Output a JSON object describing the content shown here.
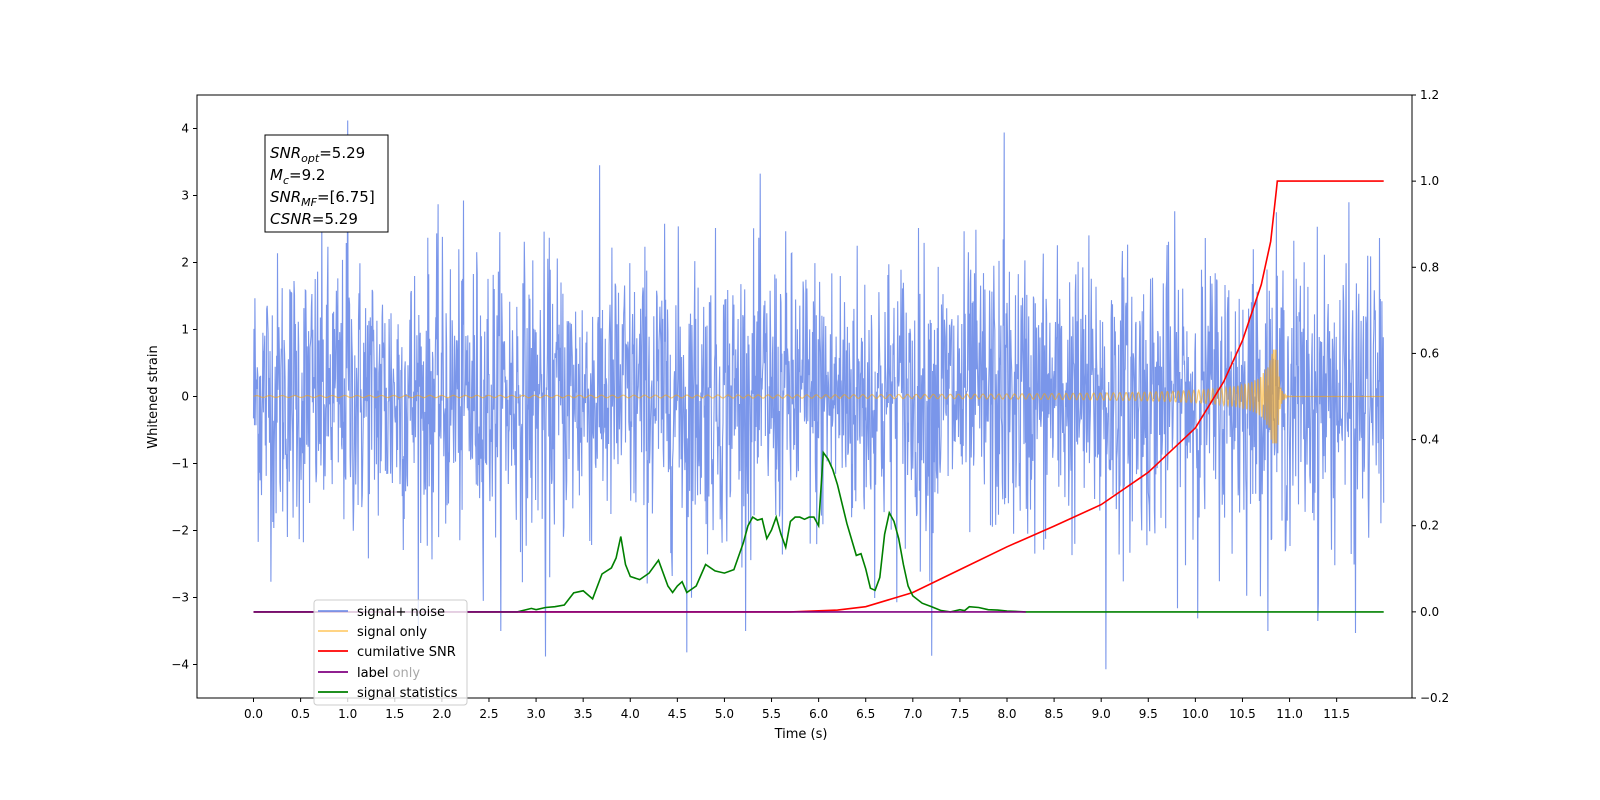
{
  "chart_data": {
    "type": "line",
    "xlabel": "Time (s)",
    "ylabel": "Whitened strain",
    "xlim": [
      -0.6,
      12.3
    ],
    "ylim_left": [
      -4.5,
      4.5
    ],
    "ylim_right": [
      -0.2,
      1.2
    ],
    "x_ticks": [
      0.0,
      0.5,
      1.0,
      1.5,
      2.0,
      2.5,
      3.0,
      3.5,
      4.0,
      4.5,
      5.0,
      5.5,
      6.0,
      6.5,
      7.0,
      7.5,
      8.0,
      8.5,
      9.0,
      9.5,
      10.0,
      10.5,
      11.0,
      11.5
    ],
    "x_tick_labels": [
      "0.0",
      "0.5",
      "1.0",
      "1.5",
      "2.0",
      "2.5",
      "3.0",
      "3.5",
      "4.0",
      "4.5",
      "5.0",
      "5.5",
      "6.0",
      "6.5",
      "7.0",
      "7.5",
      "8.0",
      "8.5",
      "9.0",
      "9.5",
      "10.0",
      "10.5",
      "11.0",
      "11.5"
    ],
    "y_ticks_left": [
      -4,
      -3,
      -2,
      -1,
      0,
      1,
      2,
      3,
      4
    ],
    "y_tick_labels_left": [
      "−4",
      "−3",
      "−2",
      "−1",
      "0",
      "1",
      "2",
      "3",
      "4"
    ],
    "y_ticks_right": [
      -0.2,
      0.0,
      0.2,
      0.4,
      0.6,
      0.8,
      1.0,
      1.2
    ],
    "y_tick_labels_right": [
      "−0.2",
      "0.0",
      "0.2",
      "0.4",
      "0.6",
      "0.8",
      "1.0",
      "1.2"
    ],
    "grid": false,
    "legend_position": "lower-left",
    "annotation": {
      "lines": [
        {
          "base": "SNR",
          "sub": "opt",
          "rest": "=5.29"
        },
        {
          "base": "M",
          "sub": "c",
          "rest": "=9.2"
        },
        {
          "base": "SNR",
          "sub": "MF",
          "rest": "=[6.75]"
        },
        {
          "base": "CSNR",
          "sub": "",
          "rest": "=5.29"
        }
      ]
    },
    "series": [
      {
        "name": "signal+ noise",
        "axis": "left",
        "color": "#4169e1",
        "kind": "noise",
        "x_range": [
          0.0,
          12.0
        ],
        "amplitude_typical": 1.7,
        "extremes": [
          [
            1.0,
            4.12
          ],
          [
            7.97,
            3.94
          ],
          [
            3.1,
            -3.88
          ],
          [
            9.05,
            -4.07
          ],
          [
            7.2,
            -3.87
          ],
          [
            4.6,
            -3.82
          ],
          [
            11.3,
            -3.35
          ],
          [
            11.7,
            -3.53
          ]
        ]
      },
      {
        "name": "signal only",
        "axis": "left",
        "color": "#ffa500",
        "kind": "chirp",
        "x_range": [
          0.0,
          12.0
        ],
        "merger_time": 10.87,
        "peak_amplitude": 0.7
      },
      {
        "name": "cumilative SNR",
        "axis": "right",
        "color": "#ff0000",
        "x": [
          0.0,
          5.7,
          6.2,
          6.5,
          7.0,
          7.5,
          8.0,
          8.5,
          9.0,
          9.5,
          10.0,
          10.3,
          10.5,
          10.7,
          10.8,
          10.86,
          10.87,
          12.0
        ],
        "y": [
          0.0,
          0.0,
          0.004,
          0.012,
          0.045,
          0.098,
          0.151,
          0.199,
          0.249,
          0.324,
          0.427,
          0.534,
          0.63,
          0.76,
          0.86,
          0.98,
          1.0,
          1.0
        ]
      },
      {
        "name": "label",
        "axis": "right",
        "color": "#800080",
        "x": [
          0.0,
          8.2
        ],
        "y": [
          0.0,
          0.0
        ]
      },
      {
        "name": "label only",
        "axis": "right",
        "color": "#800080",
        "x": [],
        "y": []
      },
      {
        "name": "signal statistics",
        "axis": "right",
        "color": "#008000",
        "x": [
          0.0,
          2.8,
          2.95,
          3.0,
          3.1,
          3.2,
          3.3,
          3.4,
          3.5,
          3.6,
          3.7,
          3.8,
          3.85,
          3.9,
          3.95,
          4.0,
          4.1,
          4.2,
          4.3,
          4.4,
          4.45,
          4.5,
          4.55,
          4.6,
          4.7,
          4.8,
          4.9,
          5.0,
          5.1,
          5.2,
          5.25,
          5.3,
          5.35,
          5.4,
          5.45,
          5.5,
          5.55,
          5.6,
          5.65,
          5.7,
          5.75,
          5.8,
          5.85,
          5.9,
          5.95,
          6.0,
          6.05,
          6.1,
          6.15,
          6.2,
          6.3,
          6.4,
          6.45,
          6.5,
          6.55,
          6.6,
          6.65,
          6.7,
          6.75,
          6.8,
          6.85,
          6.9,
          6.95,
          7.0,
          7.1,
          7.2,
          7.3,
          7.4,
          7.5,
          7.55,
          7.6,
          7.7,
          7.8,
          7.9,
          8.0,
          8.2,
          8.4,
          8.6,
          12.0
        ],
        "y": [
          0.0,
          0.0,
          0.008,
          0.005,
          0.01,
          0.012,
          0.016,
          0.044,
          0.049,
          0.03,
          0.088,
          0.102,
          0.125,
          0.175,
          0.11,
          0.082,
          0.075,
          0.09,
          0.12,
          0.06,
          0.045,
          0.06,
          0.07,
          0.045,
          0.06,
          0.11,
          0.095,
          0.09,
          0.098,
          0.16,
          0.2,
          0.22,
          0.213,
          0.216,
          0.17,
          0.19,
          0.22,
          0.18,
          0.15,
          0.21,
          0.22,
          0.22,
          0.215,
          0.22,
          0.22,
          0.2,
          0.37,
          0.355,
          0.33,
          0.295,
          0.205,
          0.131,
          0.135,
          0.1,
          0.055,
          0.05,
          0.08,
          0.18,
          0.23,
          0.21,
          0.17,
          0.11,
          0.06,
          0.037,
          0.02,
          0.012,
          0.003,
          0.0,
          0.005,
          0.003,
          0.012,
          0.01,
          0.005,
          0.004,
          0.002,
          0.0,
          0.0,
          0.0,
          0.0
        ]
      }
    ]
  }
}
